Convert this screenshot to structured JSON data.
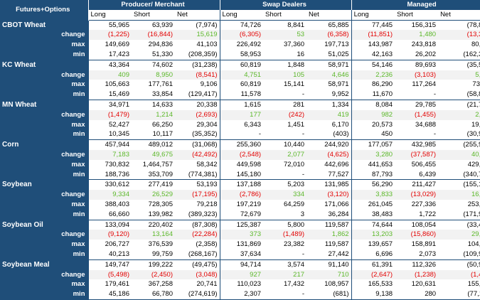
{
  "header": {
    "corner": "Futures+Options",
    "groups": [
      "Producer/ Merchant",
      "Swap Dealers",
      "Managed"
    ],
    "subcols": [
      "Long",
      "Short",
      "Net"
    ]
  },
  "colors": {
    "header_bg": "#1f4e79",
    "positive": "#5cb82a",
    "negative": "#e30000"
  },
  "rows": [
    {
      "commodity": "CBOT Wheat",
      "label": "",
      "values": [
        "55,965",
        "63,939",
        "(7,974)",
        "74,726",
        "8,841",
        "65,885",
        "77,445",
        "156,315",
        "(78,870)"
      ]
    },
    {
      "commodity": "",
      "label": "change",
      "values": [
        "(1,225)",
        "(16,844)",
        "15,619",
        "(6,305)",
        "53",
        "(6,358)",
        "(11,851)",
        "1,480",
        "(13,331)"
      ]
    },
    {
      "commodity": "",
      "label": "max",
      "values": [
        "149,669",
        "294,836",
        "41,103",
        "226,492",
        "37,360",
        "197,713",
        "143,987",
        "243,818",
        "80,827"
      ]
    },
    {
      "commodity": "",
      "label": "min",
      "values": [
        "17,423",
        "51,330",
        "(208,359)",
        "58,953",
        "16",
        "51,025",
        "42,163",
        "26,202",
        "(162,327)"
      ]
    },
    {
      "commodity": "KC Wheat",
      "label": "",
      "values": [
        "43,364",
        "74,602",
        "(31,238)",
        "60,819",
        "1,848",
        "58,971",
        "54,146",
        "89,693",
        "(35,547)"
      ]
    },
    {
      "commodity": "",
      "label": "change",
      "values": [
        "409",
        "8,950",
        "(8,541)",
        "4,751",
        "105",
        "4,646",
        "2,236",
        "(3,103)",
        "5,339"
      ]
    },
    {
      "commodity": "",
      "label": "max",
      "values": [
        "105,663",
        "177,761",
        "9,106",
        "60,819",
        "15,141",
        "58,971",
        "86,290",
        "117,264",
        "73,111"
      ]
    },
    {
      "commodity": "",
      "label": "min",
      "values": [
        "15,469",
        "33,854",
        "(129,417)",
        "11,578",
        "-",
        "9,952",
        "11,670",
        "-",
        "(58,866)"
      ]
    },
    {
      "commodity": "MN Wheat",
      "label": "",
      "values": [
        "34,971",
        "14,633",
        "20,338",
        "1,615",
        "281",
        "1,334",
        "8,084",
        "29,785",
        "(21,701)"
      ]
    },
    {
      "commodity": "",
      "label": "change",
      "values": [
        "(1,479)",
        "1,214",
        "(2,693)",
        "177",
        "(242)",
        "419",
        "982",
        "(1,455)",
        "2,437"
      ]
    },
    {
      "commodity": "",
      "label": "max",
      "values": [
        "52,427",
        "66,250",
        "29,304",
        "6,343",
        "1,451",
        "6,170",
        "20,573",
        "34,688",
        "19,867"
      ]
    },
    {
      "commodity": "",
      "label": "min",
      "values": [
        "10,345",
        "10,117",
        "(35,352)",
        "-",
        "-",
        "(403)",
        "450",
        "-",
        "(30,998)"
      ]
    },
    {
      "commodity": "Corn",
      "label": "",
      "values": [
        "457,944",
        "489,012",
        "(31,068)",
        "255,360",
        "10,440",
        "244,920",
        "177,057",
        "432,985",
        "(255,928)"
      ]
    },
    {
      "commodity": "",
      "label": "change",
      "values": [
        "7,183",
        "49,675",
        "(42,492)",
        "(2,548)",
        "2,077",
        "(4,625)",
        "3,280",
        "(37,587)",
        "40,867"
      ]
    },
    {
      "commodity": "",
      "label": "max",
      "values": [
        "730,832",
        "1,464,757",
        "58,342",
        "449,598",
        "72,010",
        "442,696",
        "441,653",
        "506,455",
        "429,189"
      ]
    },
    {
      "commodity": "",
      "label": "min",
      "values": [
        "188,736",
        "353,709",
        "(774,381)",
        "145,180",
        "-",
        "77,527",
        "87,793",
        "6,439",
        "(340,732)"
      ]
    },
    {
      "commodity": "Soybean",
      "label": "",
      "values": [
        "330,612",
        "277,419",
        "53,193",
        "137,188",
        "5,203",
        "131,985",
        "56,290",
        "211,427",
        "(155,137)"
      ]
    },
    {
      "commodity": "",
      "label": "change",
      "values": [
        "9,334",
        "26,529",
        "(17,195)",
        "(2,786)",
        "334",
        "(3,120)",
        "3,833",
        "(13,029)",
        "16,862"
      ]
    },
    {
      "commodity": "",
      "label": "max",
      "values": [
        "388,403",
        "728,305",
        "79,218",
        "197,219",
        "64,259",
        "171,066",
        "261,045",
        "227,336",
        "253,889"
      ]
    },
    {
      "commodity": "",
      "label": "min",
      "values": [
        "66,660",
        "139,982",
        "(389,323)",
        "72,679",
        "3",
        "36,284",
        "38,483",
        "1,722",
        "(171,999)"
      ]
    },
    {
      "commodity": "Soybean Oil",
      "label": "",
      "values": [
        "133,094",
        "220,402",
        "(87,308)",
        "125,387",
        "5,800",
        "119,587",
        "74,644",
        "108,054",
        "(33,410)"
      ]
    },
    {
      "commodity": "",
      "label": "change",
      "values": [
        "(9,120)",
        "13,164",
        "(22,284)",
        "373",
        "(1,489)",
        "1,862",
        "13,203",
        "(15,860)",
        "29,063"
      ]
    },
    {
      "commodity": "",
      "label": "max",
      "values": [
        "206,727",
        "376,539",
        "(2,358)",
        "131,869",
        "23,382",
        "119,587",
        "139,657",
        "158,891",
        "104,325"
      ]
    },
    {
      "commodity": "",
      "label": "min",
      "values": [
        "40,213",
        "99,759",
        "(268,167)",
        "37,634",
        "-",
        "27,442",
        "6,696",
        "2,073",
        "(109,950)"
      ]
    },
    {
      "commodity": "Soybean Meal",
      "label": "",
      "values": [
        "149,747",
        "199,222",
        "(49,475)",
        "94,714",
        "3,574",
        "91,140",
        "61,391",
        "112,326",
        "(50,935)"
      ]
    },
    {
      "commodity": "",
      "label": "change",
      "values": [
        "(5,498)",
        "(2,450)",
        "(3,048)",
        "927",
        "217",
        "710",
        "(2,647)",
        "(1,238)",
        "(1,409)"
      ]
    },
    {
      "commodity": "",
      "label": "max",
      "values": [
        "179,461",
        "367,258",
        "20,741",
        "110,023",
        "17,432",
        "108,957",
        "165,533",
        "120,631",
        "155,063"
      ]
    },
    {
      "commodity": "",
      "label": "min",
      "values": [
        "45,186",
        "66,780",
        "(274,619)",
        "2,307",
        "-",
        "(681)",
        "9,138",
        "280",
        "(77,112)"
      ]
    }
  ]
}
